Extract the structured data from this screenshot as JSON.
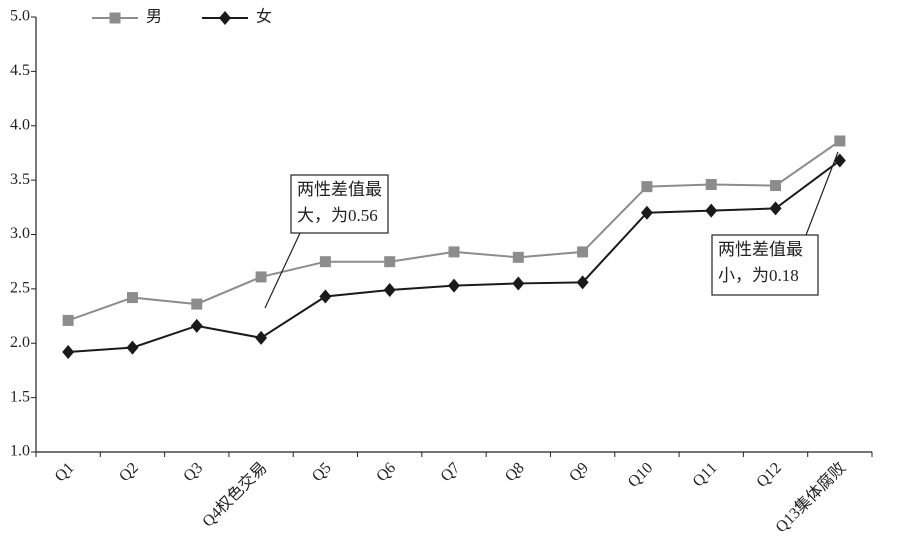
{
  "chart_data": {
    "type": "line",
    "categories": [
      "Q1",
      "Q2",
      "Q3",
      "Q4权色交易",
      "Q5",
      "Q6",
      "Q7",
      "Q8",
      "Q9",
      "Q10",
      "Q11",
      "Q12",
      "Q13集体腐败"
    ],
    "series": [
      {
        "name": "男",
        "color": "#8c8c8c",
        "marker": "square",
        "values": [
          2.21,
          2.42,
          2.36,
          2.61,
          2.75,
          2.75,
          2.84,
          2.79,
          2.84,
          3.44,
          3.46,
          3.45,
          3.86
        ]
      },
      {
        "name": "女",
        "color": "#1a1a1a",
        "marker": "diamond",
        "values": [
          1.92,
          1.96,
          2.16,
          2.05,
          2.43,
          2.49,
          2.53,
          2.55,
          2.56,
          3.2,
          3.22,
          3.24,
          3.68
        ]
      }
    ],
    "ylim": [
      1,
      5
    ],
    "yticks": [
      {
        "value": 1,
        "label": "1.0"
      },
      1.5,
      {
        "value": 2,
        "label": "2.0"
      },
      2.5,
      {
        "value": 3,
        "label": "3.0"
      },
      3.5,
      {
        "value": 4,
        "label": "4.0"
      },
      4.5,
      {
        "value": 5,
        "label": "5.0"
      }
    ],
    "grid": false,
    "legend": "top-left",
    "annotations": [
      {
        "lines": [
          "两性差值最",
          "大，为0.56"
        ]
      },
      {
        "lines": [
          "两性差值最",
          "小，为0.18"
        ]
      }
    ]
  }
}
